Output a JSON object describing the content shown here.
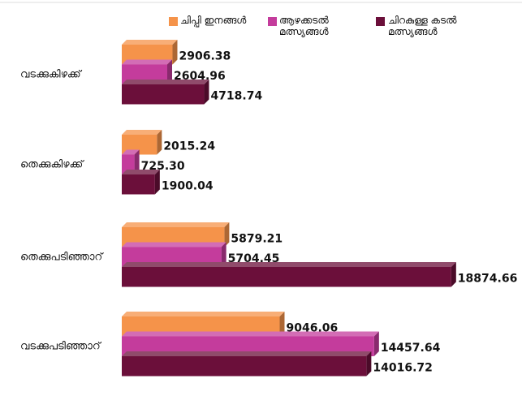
{
  "chart_data": {
    "type": "bar3d-horizontal",
    "categories": [
      "വടക്കുകിഴക്ക്",
      "തെക്കുകിഴക്ക്",
      "തെക്കുപടിഞ്ഞാറ്",
      "വടക്കുപടിഞ്ഞാറ്"
    ],
    "series": [
      {
        "name": "ചിപ്പി ഇനങ്ങൾ",
        "color": "#f5934a",
        "values": [
          2906.38,
          2015.24,
          5879.21,
          9046.06
        ],
        "value_labels": [
          "2906.38",
          "2015.24",
          "5879.21",
          "9046.06"
        ]
      },
      {
        "name": "ആഴക്കടൽ മത്സ്യങ്ങൾ",
        "color": "#c43c9c",
        "values": [
          2604.96,
          725.3,
          5704.45,
          14457.64
        ],
        "value_labels": [
          "2604.96",
          "725.30",
          "5704.45",
          "14457.64"
        ]
      },
      {
        "name": "ചിറകുള്ള കടൽ മത്സ്യങ്ങൾ",
        "color": "#6b0f3a",
        "values": [
          4718.74,
          1900.04,
          18874.66,
          14016.72
        ],
        "value_labels": [
          "4718.74",
          "1900.04",
          "18874.66",
          "14016.72"
        ]
      }
    ],
    "xlim": [
      0,
      20000
    ]
  }
}
